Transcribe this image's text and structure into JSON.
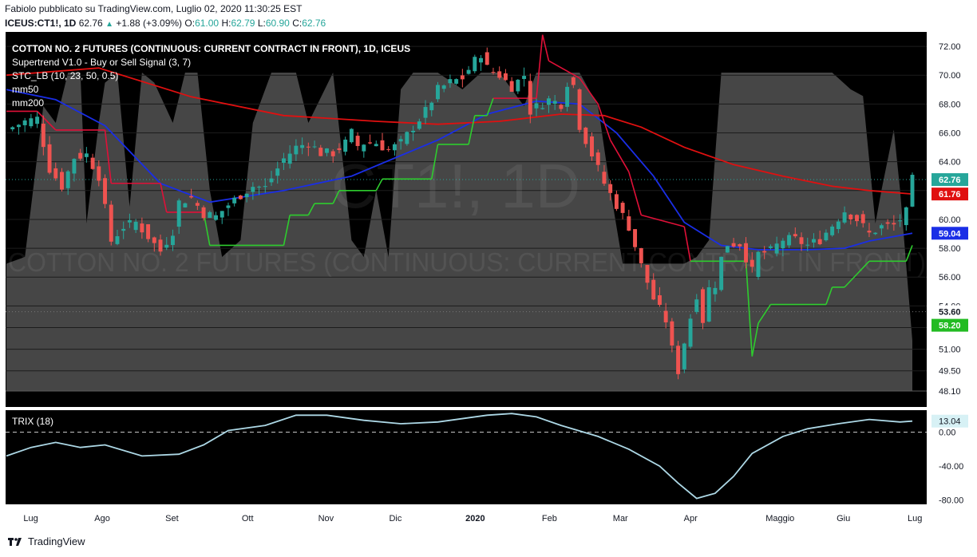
{
  "header": {
    "author_line": "Fabiolo pubblicato su TradingView.com, Luglio 02, 2020 11:30:25 EST",
    "symbol": "ICEUS:CT1!, 1D",
    "last": "62.76",
    "change": "+1.88 (+3.09%)",
    "o_label": "O:",
    "o_val": "61.00",
    "h_label": "H:",
    "h_val": "62.79",
    "l_label": "L:",
    "l_val": "60.90",
    "c_label": "C:",
    "c_val": "62.76"
  },
  "legend": {
    "title": "COTTON NO. 2 FUTURES (CONTINUOUS: CURRENT CONTRACT IN FRONT), 1D, ICEUS",
    "supertrend": "Supertrend V1.0 - Buy or Sell Signal (3, 7)",
    "stc": "STC_LB (10, 23, 50, 0.5)",
    "mm50": "mm50",
    "mm200": "mm200"
  },
  "watermark": {
    "symbol": "CT1!, 1D",
    "name": "COTTON NO. 2 FUTURES (CONTINUOUS: CURRENT CONTRACT IN FRONT)"
  },
  "trix_label": "TRIX (18)",
  "footer": {
    "brand": "TradingView"
  },
  "colors": {
    "background": "#000000",
    "up": "#26a69a",
    "down": "#ef5350",
    "mm50": "#1a2ee6",
    "mm200": "#e01010",
    "supertrend_up": "#2ecc2e",
    "supertrend_down": "#e01038",
    "stc_fill": "#4a4a4a",
    "trix": "#add8e6"
  },
  "chart_data": [
    {
      "type": "candlestick",
      "title": "COTTON NO. 2 FUTURES (CONTINUOUS: CURRENT CONTRACT IN FRONT), 1D, ICEUS",
      "x_ticks": [
        "Lug",
        "Ago",
        "Set",
        "Ott",
        "Nov",
        "Dic",
        "2020",
        "Feb",
        "Mar",
        "Apr",
        "Maggio",
        "Giu",
        "Lug"
      ],
      "y_ticks": [
        "72.00",
        "70.00",
        "68.00",
        "66.00",
        "64.00",
        "62.00",
        "60.00",
        "58.00",
        "56.00",
        "54.00",
        "52.50",
        "51.00",
        "49.50",
        "48.10"
      ],
      "ylim": [
        48.1,
        73
      ],
      "close_path": [
        [
          0,
          66.2
        ],
        [
          3,
          66.8
        ],
        [
          5,
          67.0
        ],
        [
          7,
          63.5
        ],
        [
          9,
          62.3
        ],
        [
          11,
          64.3
        ],
        [
          13,
          64.5
        ],
        [
          15,
          63.0
        ],
        [
          17,
          58.5
        ],
        [
          19,
          59.5
        ],
        [
          21,
          59.8
        ],
        [
          23,
          58.8
        ],
        [
          25,
          57.8
        ],
        [
          27,
          59.2
        ],
        [
          28,
          61.2
        ],
        [
          30,
          61.5
        ],
        [
          32,
          60.4
        ],
        [
          34,
          60.2
        ],
        [
          36,
          61.0
        ],
        [
          38,
          61.7
        ],
        [
          40,
          62.3
        ],
        [
          42,
          62.2
        ],
        [
          45,
          64.2
        ],
        [
          47,
          65.0
        ],
        [
          49,
          65.3
        ],
        [
          51,
          64.6
        ],
        [
          53,
          64.6
        ],
        [
          55,
          65.3
        ],
        [
          56,
          66.0
        ],
        [
          57,
          65.1
        ],
        [
          58,
          65.3
        ],
        [
          60,
          65.3
        ],
        [
          62,
          64.8
        ],
        [
          64,
          65.3
        ],
        [
          66,
          66.4
        ],
        [
          68,
          67.5
        ],
        [
          70,
          69.0
        ],
        [
          72,
          69.5
        ],
        [
          74,
          69.8
        ],
        [
          76,
          71.0
        ],
        [
          77,
          71.5
        ],
        [
          78,
          70.5
        ],
        [
          80,
          70.0
        ],
        [
          82,
          69.2
        ],
        [
          84,
          70.0
        ],
        [
          85,
          67.5
        ],
        [
          86,
          67.8
        ],
        [
          88,
          68.3
        ],
        [
          90,
          68.0
        ],
        [
          91,
          69.5
        ],
        [
          92,
          69.3
        ],
        [
          93,
          66.5
        ],
        [
          95,
          64.5
        ],
        [
          97,
          62.5
        ],
        [
          99,
          61.0
        ],
        [
          101,
          59.5
        ],
        [
          103,
          56.8
        ],
        [
          105,
          54.5
        ],
        [
          107,
          53.0
        ],
        [
          108,
          51.0
        ],
        [
          109,
          49.5
        ],
        [
          110,
          51.5
        ],
        [
          111,
          53.2
        ],
        [
          112,
          54.8
        ],
        [
          113,
          53.0
        ],
        [
          114,
          55.2
        ],
        [
          115,
          55.5
        ],
        [
          116,
          57.3
        ],
        [
          117,
          58.3
        ],
        [
          119,
          58.3
        ],
        [
          121,
          56.4
        ],
        [
          122,
          57.6
        ],
        [
          124,
          57.8
        ],
        [
          126,
          58.6
        ],
        [
          128,
          58.6
        ],
        [
          130,
          58.2
        ],
        [
          132,
          58.6
        ],
        [
          134,
          59.6
        ],
        [
          136,
          60.6
        ],
        [
          138,
          60.0
        ],
        [
          140,
          59.0
        ],
        [
          142,
          59.5
        ],
        [
          144,
          59.6
        ],
        [
          145,
          60.0
        ],
        [
          146,
          60.5
        ],
        [
          147,
          62.76
        ]
      ]
    },
    {
      "type": "line",
      "series": [
        {
          "name": "mm50",
          "points": [
            [
              0,
              69.0
            ],
            [
              8,
              68.3
            ],
            [
              16,
              66.5
            ],
            [
              25,
              62.5
            ],
            [
              33,
              61.2
            ],
            [
              45,
              62.0
            ],
            [
              56,
              63.0
            ],
            [
              70,
              65.5
            ],
            [
              78,
              67.3
            ],
            [
              86,
              68.2
            ],
            [
              93,
              68.0
            ],
            [
              99,
              66.0
            ],
            [
              105,
              63.0
            ],
            [
              110,
              59.8
            ],
            [
              116,
              58.2
            ],
            [
              122,
              57.9
            ],
            [
              130,
              57.9
            ],
            [
              136,
              58.0
            ],
            [
              140,
              58.5
            ],
            [
              147,
              59.04
            ]
          ]
        },
        {
          "name": "mm200",
          "points": [
            [
              0,
              70.0
            ],
            [
              15,
              70.5
            ],
            [
              30,
              68.5
            ],
            [
              45,
              67.2
            ],
            [
              60,
              66.8
            ],
            [
              70,
              66.6
            ],
            [
              80,
              66.8
            ],
            [
              90,
              67.3
            ],
            [
              97,
              67.2
            ],
            [
              103,
              66.4
            ],
            [
              110,
              65.0
            ],
            [
              118,
              63.8
            ],
            [
              126,
              63.0
            ],
            [
              134,
              62.3
            ],
            [
              140,
              62.0
            ],
            [
              147,
              61.76
            ]
          ]
        },
        {
          "name": "Supertrend",
          "points": [
            [
              0,
              67.5
            ],
            [
              5,
              67.5
            ],
            [
              8,
              66.2
            ],
            [
              16,
              66.2
            ],
            [
              17,
              62.5
            ],
            [
              25,
              62.5
            ],
            [
              26,
              60.5
            ],
            [
              32,
              60.5
            ],
            [
              33,
              58.2
            ],
            [
              45,
              58.2
            ],
            [
              46,
              60.3
            ],
            [
              49,
              60.3
            ],
            [
              50,
              61.1
            ],
            [
              53,
              61.1
            ],
            [
              54,
              62.0
            ],
            [
              60,
              62.0
            ],
            [
              61,
              62.8
            ],
            [
              69,
              62.8
            ],
            [
              70,
              65.2
            ],
            [
              75,
              65.2
            ],
            [
              76,
              67.2
            ],
            [
              78,
              67.2
            ],
            [
              79,
              68.4
            ],
            [
              86,
              68.4
            ],
            [
              87,
              72.8
            ],
            [
              88,
              71.0
            ],
            [
              93,
              69.8
            ],
            [
              96,
              68.0
            ],
            [
              98,
              65.5
            ],
            [
              101,
              63.3
            ],
            [
              103,
              60.3
            ],
            [
              110,
              59.5
            ],
            [
              111,
              57.1
            ],
            [
              120,
              57.1
            ],
            [
              121,
              50.5
            ],
            [
              122,
              52.8
            ],
            [
              124,
              54.1
            ],
            [
              133,
              54.1
            ],
            [
              134,
              55.3
            ],
            [
              136,
              55.3
            ],
            [
              138,
              56.2
            ],
            [
              140,
              57.1
            ],
            [
              146,
              57.1
            ],
            [
              147,
              58.2
            ]
          ]
        }
      ]
    },
    {
      "type": "line",
      "title": "TRIX (18)",
      "y_ticks": [
        "0.00",
        "-40.00",
        "-80.00"
      ],
      "ylim": [
        -85,
        25
      ],
      "last_value": "13.04",
      "points": [
        [
          0,
          -28
        ],
        [
          4,
          -18
        ],
        [
          8,
          -12
        ],
        [
          12,
          -18
        ],
        [
          16,
          -15
        ],
        [
          22,
          -28
        ],
        [
          28,
          -26
        ],
        [
          32,
          -15
        ],
        [
          36,
          2
        ],
        [
          42,
          8
        ],
        [
          47,
          20
        ],
        [
          52,
          20
        ],
        [
          58,
          14
        ],
        [
          64,
          10
        ],
        [
          70,
          12
        ],
        [
          78,
          20
        ],
        [
          82,
          22
        ],
        [
          86,
          18
        ],
        [
          90,
          8
        ],
        [
          96,
          -5
        ],
        [
          101,
          -20
        ],
        [
          106,
          -40
        ],
        [
          109,
          -60
        ],
        [
          112,
          -78
        ],
        [
          115,
          -72
        ],
        [
          118,
          -52
        ],
        [
          121,
          -25
        ],
        [
          126,
          -5
        ],
        [
          130,
          4
        ],
        [
          135,
          10
        ],
        [
          140,
          15
        ],
        [
          145,
          12
        ],
        [
          147,
          13.04
        ]
      ]
    }
  ],
  "price_labels": {
    "last": "62.76",
    "mm200": "61.76",
    "mm50": "59.04",
    "level": "53.60",
    "supertrend": "58.20"
  }
}
